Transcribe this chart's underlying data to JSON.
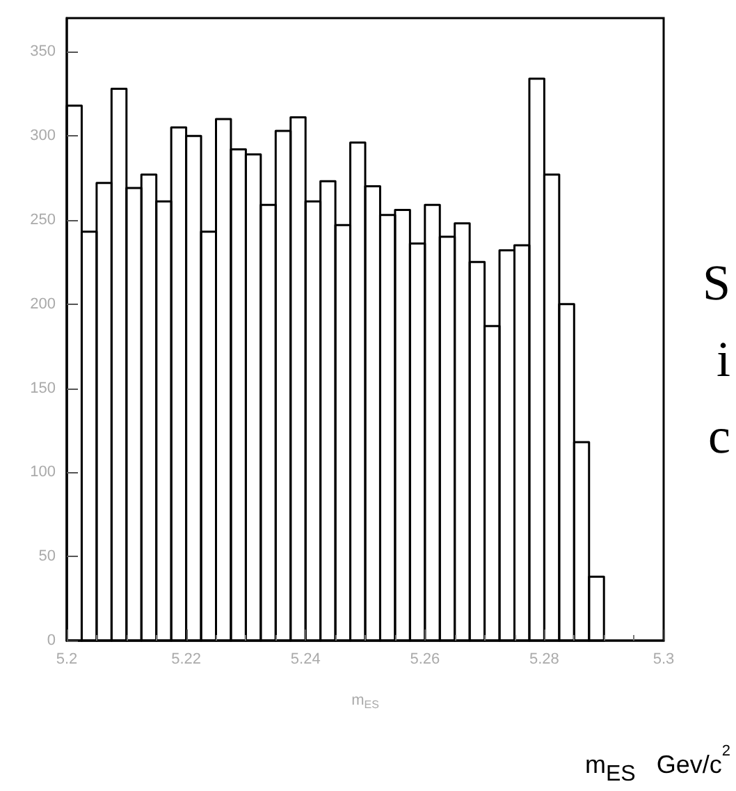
{
  "chart_data": {
    "type": "histogram",
    "xlabel": "m$_{ES}$",
    "bins": [
      5.2,
      5.2025,
      5.205,
      5.2075,
      5.21,
      5.2125,
      5.215,
      5.2175,
      5.22,
      5.2225,
      5.225,
      5.2275,
      5.23,
      5.2325,
      5.235,
      5.2375,
      5.24,
      5.2425,
      5.245,
      5.2475,
      5.25,
      5.2525,
      5.255,
      5.2575,
      5.26,
      5.2625,
      5.265,
      5.2675,
      5.27,
      5.2725,
      5.275,
      5.2775,
      5.28,
      5.2825,
      5.285,
      5.2875,
      5.29
    ],
    "values": [
      318,
      243,
      272,
      328,
      269,
      277,
      261,
      305,
      300,
      243,
      310,
      292,
      289,
      259,
      303,
      311,
      261,
      273,
      247,
      296,
      270,
      253,
      256,
      236,
      259,
      240,
      248,
      225,
      187,
      232,
      235,
      334,
      277,
      200,
      118,
      38
    ],
    "color": "#000000",
    "xlim": [
      5.2,
      5.3
    ],
    "xticks": [
      5.2,
      5.22,
      5.24,
      5.26,
      5.28,
      5.3
    ],
    "ylim": [
      0,
      370
    ],
    "yticks": [
      0,
      50,
      100,
      150,
      200,
      250,
      300,
      350
    ],
    "grid": false,
    "annotations": [
      "S",
      "i",
      "c",
      "m$_{ES}$   Gev/c$^{2}$"
    ]
  }
}
